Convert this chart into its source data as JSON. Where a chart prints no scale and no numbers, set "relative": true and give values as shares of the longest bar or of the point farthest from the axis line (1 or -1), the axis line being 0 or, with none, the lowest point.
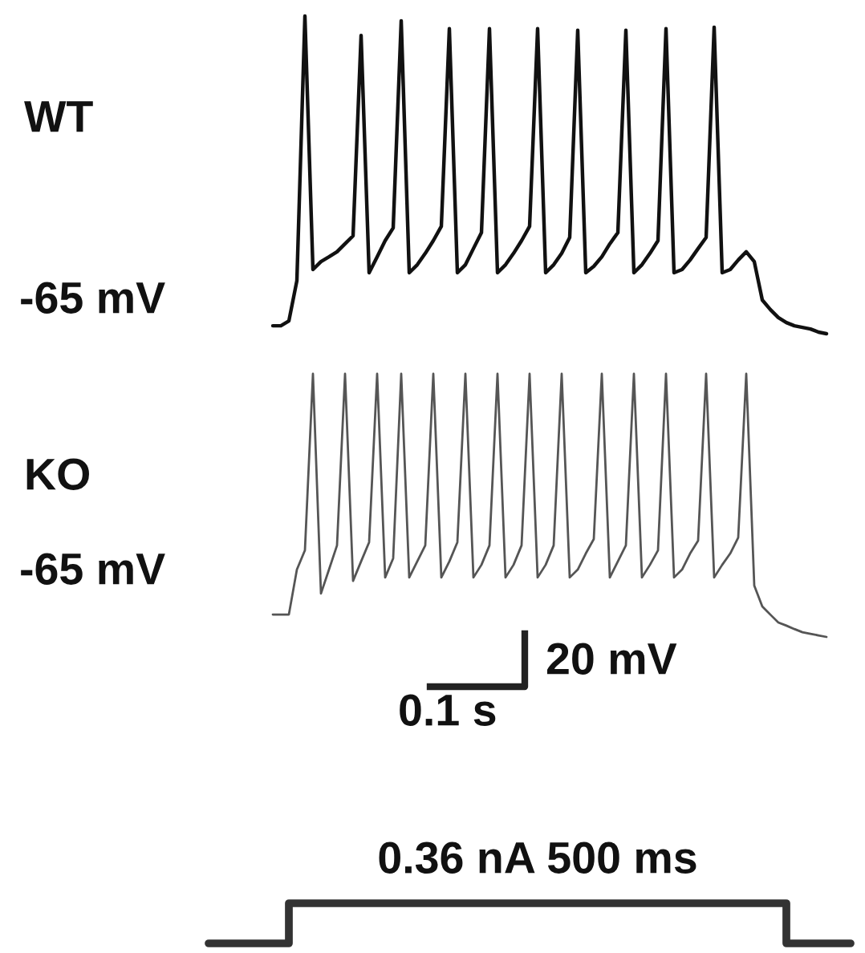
{
  "chart_data": [
    {
      "type": "line",
      "relative": true,
      "title": "WT",
      "annotations": [
        "-65 mV"
      ],
      "categories": [
        null,
        null,
        null,
        null,
        null,
        null,
        null,
        null,
        null,
        null,
        null,
        null,
        null,
        null,
        null,
        null,
        null,
        null,
        null,
        null,
        null,
        null,
        null,
        null,
        null,
        null,
        null,
        null,
        null,
        null,
        null,
        null,
        null,
        null,
        null,
        null,
        null,
        null,
        null,
        null,
        null,
        null,
        null,
        null,
        null,
        null,
        null,
        null,
        null,
        null,
        null,
        null,
        null,
        null,
        null,
        null,
        null,
        null,
        null,
        null,
        null,
        null,
        null,
        null,
        null,
        null,
        null,
        null,
        null,
        null
      ],
      "series": [
        {
          "color": "#111111",
          "values": [
            0.025,
            0.025,
            0.04,
            0.167,
            1.0,
            0.202,
            0.227,
            0.242,
            0.258,
            0.283,
            0.308,
            0.939,
            0.192,
            0.242,
            0.293,
            0.333,
            0.985,
            0.192,
            0.217,
            0.253,
            0.293,
            0.338,
            0.96,
            0.192,
            0.217,
            0.268,
            0.318,
            0.96,
            0.192,
            0.217,
            0.253,
            0.293,
            0.338,
            0.96,
            0.192,
            0.217,
            0.253,
            0.303,
            0.955,
            0.192,
            0.212,
            0.242,
            0.283,
            0.318,
            0.955,
            0.192,
            0.217,
            0.253,
            0.293,
            0.96,
            0.192,
            0.202,
            0.232,
            0.268,
            0.303,
            0.965,
            0.192,
            0.202,
            0.232,
            0.258,
            0.227,
            0.106,
            0.076,
            0.051,
            0.035,
            0.025,
            0.02,
            0.015,
            0.005,
            0.0
          ]
        }
      ]
    },
    {
      "type": "line",
      "relative": true,
      "title": "KO",
      "annotations": [
        "-65 mV",
        "20 mV",
        "0.1 s"
      ],
      "categories": [
        null,
        null,
        null,
        null,
        null,
        null,
        null,
        null,
        null,
        null,
        null,
        null,
        null,
        null,
        null,
        null,
        null,
        null,
        null,
        null,
        null,
        null,
        null,
        null,
        null,
        null,
        null,
        null,
        null,
        null,
        null,
        null,
        null,
        null,
        null,
        null,
        null,
        null,
        null,
        null,
        null,
        null,
        null,
        null,
        null,
        null,
        null,
        null,
        null,
        null,
        null,
        null,
        null,
        null,
        null,
        null,
        null,
        null,
        null,
        null,
        null,
        null,
        null,
        null,
        null,
        null,
        null,
        null,
        null,
        null
      ],
      "series": [
        {
          "color": "#555555",
          "values": [
            0.085,
            0.085,
            0.085,
            0.256,
            0.329,
            1.0,
            0.165,
            0.256,
            0.348,
            1.0,
            0.213,
            0.287,
            0.36,
            1.0,
            0.226,
            0.299,
            1.0,
            0.226,
            0.287,
            0.348,
            1.0,
            0.226,
            0.287,
            0.36,
            1.0,
            0.226,
            0.274,
            0.348,
            1.0,
            0.226,
            0.274,
            0.348,
            1.0,
            0.226,
            0.274,
            0.348,
            1.0,
            0.226,
            0.256,
            0.317,
            0.372,
            1.0,
            0.226,
            0.287,
            0.348,
            1.0,
            0.226,
            0.274,
            0.329,
            1.0,
            0.226,
            0.256,
            0.317,
            0.366,
            1.0,
            0.226,
            0.274,
            0.317,
            0.378,
            1.0,
            0.195,
            0.116,
            0.085,
            0.055,
            0.043,
            0.03,
            0.018,
            0.012,
            0.006,
            0.0
          ]
        }
      ]
    },
    {
      "type": "step",
      "relative": true,
      "title": "0.36 nA 500 ms",
      "categories": [
        null,
        null,
        null,
        null,
        null,
        null,
        null,
        null,
        null,
        null,
        null,
        null,
        null,
        null,
        null,
        null,
        null,
        null,
        null,
        null,
        null,
        null,
        null,
        null,
        null,
        null,
        null,
        null,
        null,
        null,
        null,
        null,
        null,
        null,
        null,
        null,
        null,
        null,
        null,
        null,
        null
      ],
      "series": [
        {
          "color": "#333333",
          "values": [
            0,
            0,
            0,
            0,
            0,
            1,
            1,
            1,
            1,
            1,
            1,
            1,
            1,
            1,
            1,
            1,
            1,
            1,
            1,
            1,
            1,
            1,
            1,
            1,
            1,
            1,
            1,
            1,
            1,
            1,
            1,
            1,
            1,
            1,
            1,
            1,
            0,
            0,
            0,
            0,
            0
          ]
        }
      ]
    }
  ]
}
